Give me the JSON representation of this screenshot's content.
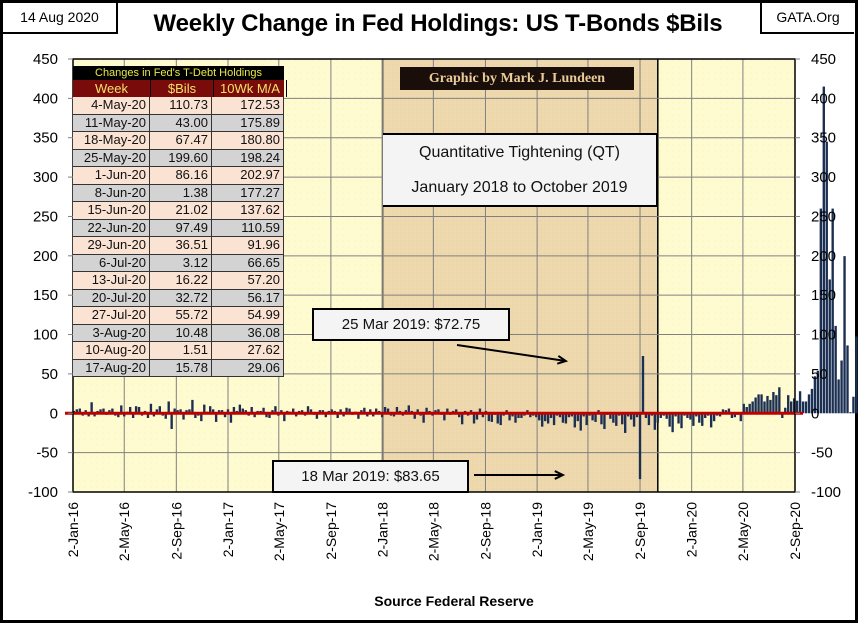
{
  "header": {
    "date": "14 Aug 2020",
    "title": "Weekly Change in Fed Holdings:  US T-Bonds $Bils",
    "site": "GATA.Org"
  },
  "credit": "Graphic by Mark J. Lundeen",
  "qt_box": {
    "line1": "Quantitative Tightening (QT)",
    "line2": "January 2018 to October 2019"
  },
  "callouts": {
    "high": "25 Mar 2019: $72.75",
    "low": "18 Mar 2019: $83.65"
  },
  "source": "Source Federal Reserve",
  "table": {
    "title": "Changes in Fed's T-Debt Holdings",
    "headers": [
      "Week",
      "$Bils",
      "10Wk M/A"
    ],
    "rows": [
      [
        "4-May-20",
        "110.73",
        "172.53"
      ],
      [
        "11-May-20",
        "43.00",
        "175.89"
      ],
      [
        "18-May-20",
        "67.47",
        "180.80"
      ],
      [
        "25-May-20",
        "199.60",
        "198.24"
      ],
      [
        "1-Jun-20",
        "86.16",
        "202.97"
      ],
      [
        "8-Jun-20",
        "1.38",
        "177.27"
      ],
      [
        "15-Jun-20",
        "21.02",
        "137.62"
      ],
      [
        "22-Jun-20",
        "97.49",
        "110.59"
      ],
      [
        "29-Jun-20",
        "36.51",
        "91.96"
      ],
      [
        "6-Jul-20",
        "3.12",
        "66.65"
      ],
      [
        "13-Jul-20",
        "16.22",
        "57.20"
      ],
      [
        "20-Jul-20",
        "32.72",
        "56.17"
      ],
      [
        "27-Jul-20",
        "55.72",
        "54.99"
      ],
      [
        "3-Aug-20",
        "10.48",
        "36.08"
      ],
      [
        "10-Aug-20",
        "1.51",
        "27.62"
      ],
      [
        "17-Aug-20",
        "15.78",
        "29.06"
      ]
    ]
  },
  "colors": {
    "bar": "#1b2f52",
    "zero_line": "#c00000",
    "plot_bg": "#fffbd0",
    "qt_bg": "#eed9ae",
    "grid": "#808080"
  },
  "chart_data": {
    "type": "bar",
    "title": "Weekly Change in Fed Holdings:  US T-Bonds $Bils",
    "xlabel": "Source Federal Reserve",
    "ylabel": "",
    "ylim": [
      -100,
      450
    ],
    "yticks": [
      450,
      400,
      350,
      300,
      250,
      200,
      150,
      100,
      50,
      0,
      -50,
      -100
    ],
    "y_axis_both_sides": true,
    "grid": true,
    "x_start": "2016-01-02",
    "x_end": "2020-09-02",
    "xtick_labels": [
      "2-Jan-16",
      "2-May-16",
      "2-Sep-16",
      "2-Jan-17",
      "2-May-17",
      "2-Sep-17",
      "2-Jan-18",
      "2-May-18",
      "2-Sep-18",
      "2-Jan-19",
      "2-May-19",
      "2-Sep-19",
      "2-Jan-20",
      "2-May-20",
      "2-Sep-20"
    ],
    "xtick_dates": [
      "2016-01-02",
      "2016-05-02",
      "2016-09-02",
      "2017-01-02",
      "2017-05-02",
      "2017-09-02",
      "2018-01-02",
      "2018-05-02",
      "2018-09-02",
      "2019-01-02",
      "2019-05-02",
      "2019-09-02",
      "2020-01-02",
      "2020-05-02",
      "2020-09-02"
    ],
    "shaded_region": {
      "label": "Quantitative Tightening (QT)",
      "start": "2018-01-02",
      "end": "2019-10-14"
    },
    "series": [
      {
        "name": "Weekly change ($Bils)",
        "start_week": "2016-01-04",
        "interval_days": 7,
        "values": [
          3,
          5,
          6,
          -3,
          4,
          -4,
          14,
          -4,
          3,
          5,
          6,
          -2,
          4,
          6,
          -3,
          -5,
          10,
          -4,
          2,
          8,
          -6,
          9,
          8,
          -3,
          3,
          -6,
          12,
          -4,
          5,
          9,
          -3,
          -7,
          15,
          -20,
          6,
          4,
          5,
          -8,
          4,
          5,
          17,
          -6,
          -3,
          -10,
          11,
          2,
          9,
          5,
          -11,
          4,
          4,
          -5,
          5,
          -12,
          8,
          3,
          11,
          6,
          4,
          -3,
          8,
          -5,
          3,
          3,
          7,
          -5,
          -6,
          4,
          9,
          -3,
          4,
          -10,
          3,
          2,
          6,
          -4,
          3,
          4,
          -3,
          9,
          5,
          -2,
          -7,
          4,
          4,
          -5,
          3,
          5,
          3,
          -6,
          5,
          -4,
          7,
          6,
          -2,
          2,
          -7,
          4,
          7,
          -4,
          5,
          -4,
          6,
          3,
          -5,
          8,
          6,
          -3,
          -4,
          8,
          3,
          -3,
          4,
          10,
          3,
          -7,
          5,
          -3,
          -12,
          7,
          3,
          -3,
          4,
          5,
          -2,
          -9,
          6,
          -2,
          3,
          5,
          -5,
          -14,
          3,
          -3,
          4,
          -13,
          -8,
          6,
          -5,
          3,
          -10,
          -11,
          -2,
          -13,
          -15,
          -3,
          4,
          -9,
          -4,
          -12,
          -6,
          -6,
          -3,
          4,
          -5,
          -3,
          -5,
          -9,
          -17,
          -10,
          -13,
          -6,
          -15,
          -3,
          -5,
          -12,
          -13,
          -5,
          -4,
          -18,
          -10,
          -22,
          -4,
          -15,
          -3,
          -9,
          -11,
          4,
          -14,
          -20,
          -2,
          -7,
          -12,
          -16,
          -3,
          -14,
          -25,
          -4,
          -8,
          -17,
          -5,
          -83.65,
          72.75,
          -6,
          -15,
          -3,
          -21,
          -12,
          -6,
          -3,
          -7,
          -17,
          -24,
          -4,
          -13,
          -19,
          -3,
          -6,
          -8,
          -16,
          -4,
          -12,
          -16,
          -6,
          -3,
          -18,
          -10,
          -3,
          -4,
          5,
          4,
          6,
          -6,
          -5,
          -2,
          -10,
          12,
          8,
          12,
          15,
          20,
          24,
          24,
          15,
          22,
          17,
          27,
          23,
          33,
          -6,
          7,
          23,
          15,
          19,
          16,
          28,
          15,
          15,
          24,
          31,
          47,
          54,
          260,
          415,
          345,
          170,
          260,
          111,
          43,
          67,
          199.6,
          86.16,
          1.38,
          21.02,
          97.49,
          36.51,
          3.12,
          16.22,
          32.72,
          55.72,
          10.48,
          1.51,
          15.78
        ]
      }
    ],
    "annotations": [
      {
        "text": "25 Mar 2019: $72.75",
        "date": "2019-03-25",
        "value": 72.75
      },
      {
        "text": "18 Mar 2019: $83.65",
        "date": "2019-03-18",
        "value": -83.65
      },
      {
        "text": "Graphic by Mark J. Lundeen"
      }
    ],
    "inset_table_title": "Changes in Fed's T-Debt Holdings"
  }
}
